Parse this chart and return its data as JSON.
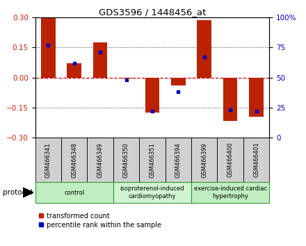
{
  "title": "GDS3596 / 1448456_at",
  "samples": [
    "GSM466341",
    "GSM466348",
    "GSM466349",
    "GSM466350",
    "GSM466351",
    "GSM466394",
    "GSM466399",
    "GSM466400",
    "GSM466401"
  ],
  "transformed_count": [
    0.295,
    0.07,
    0.175,
    -0.005,
    -0.175,
    -0.04,
    0.285,
    -0.215,
    -0.195
  ],
  "percentile_rank": [
    77,
    62,
    71,
    48,
    22,
    38,
    67,
    23,
    22
  ],
  "ylim_left": [
    -0.3,
    0.3
  ],
  "ylim_right": [
    0,
    100
  ],
  "yticks_left": [
    -0.3,
    -0.15,
    0,
    0.15,
    0.3
  ],
  "yticks_right": [
    0,
    25,
    50,
    75,
    100
  ],
  "groups": [
    {
      "label": "control",
      "indices": [
        0,
        1,
        2
      ],
      "color": "#c0eec0"
    },
    {
      "label": "isoproterenol-induced\ncardiomyopathy",
      "indices": [
        3,
        4,
        5
      ],
      "color": "#d0f4d0"
    },
    {
      "label": "exercise-induced cardiac\nhypertrophy",
      "indices": [
        6,
        7,
        8
      ],
      "color": "#c0eec0"
    }
  ],
  "bar_color": "#bb2200",
  "dot_color": "#0000bb",
  "zero_line_color": "#cc0000",
  "grid_color": "#333333",
  "background_color": "#ffffff",
  "sample_box_color": "#d0d0d0",
  "protocol_label": "protocol",
  "legend_items": [
    {
      "label": "transformed count",
      "color": "#bb2200"
    },
    {
      "label": "percentile rank within the sample",
      "color": "#0000bb"
    }
  ]
}
